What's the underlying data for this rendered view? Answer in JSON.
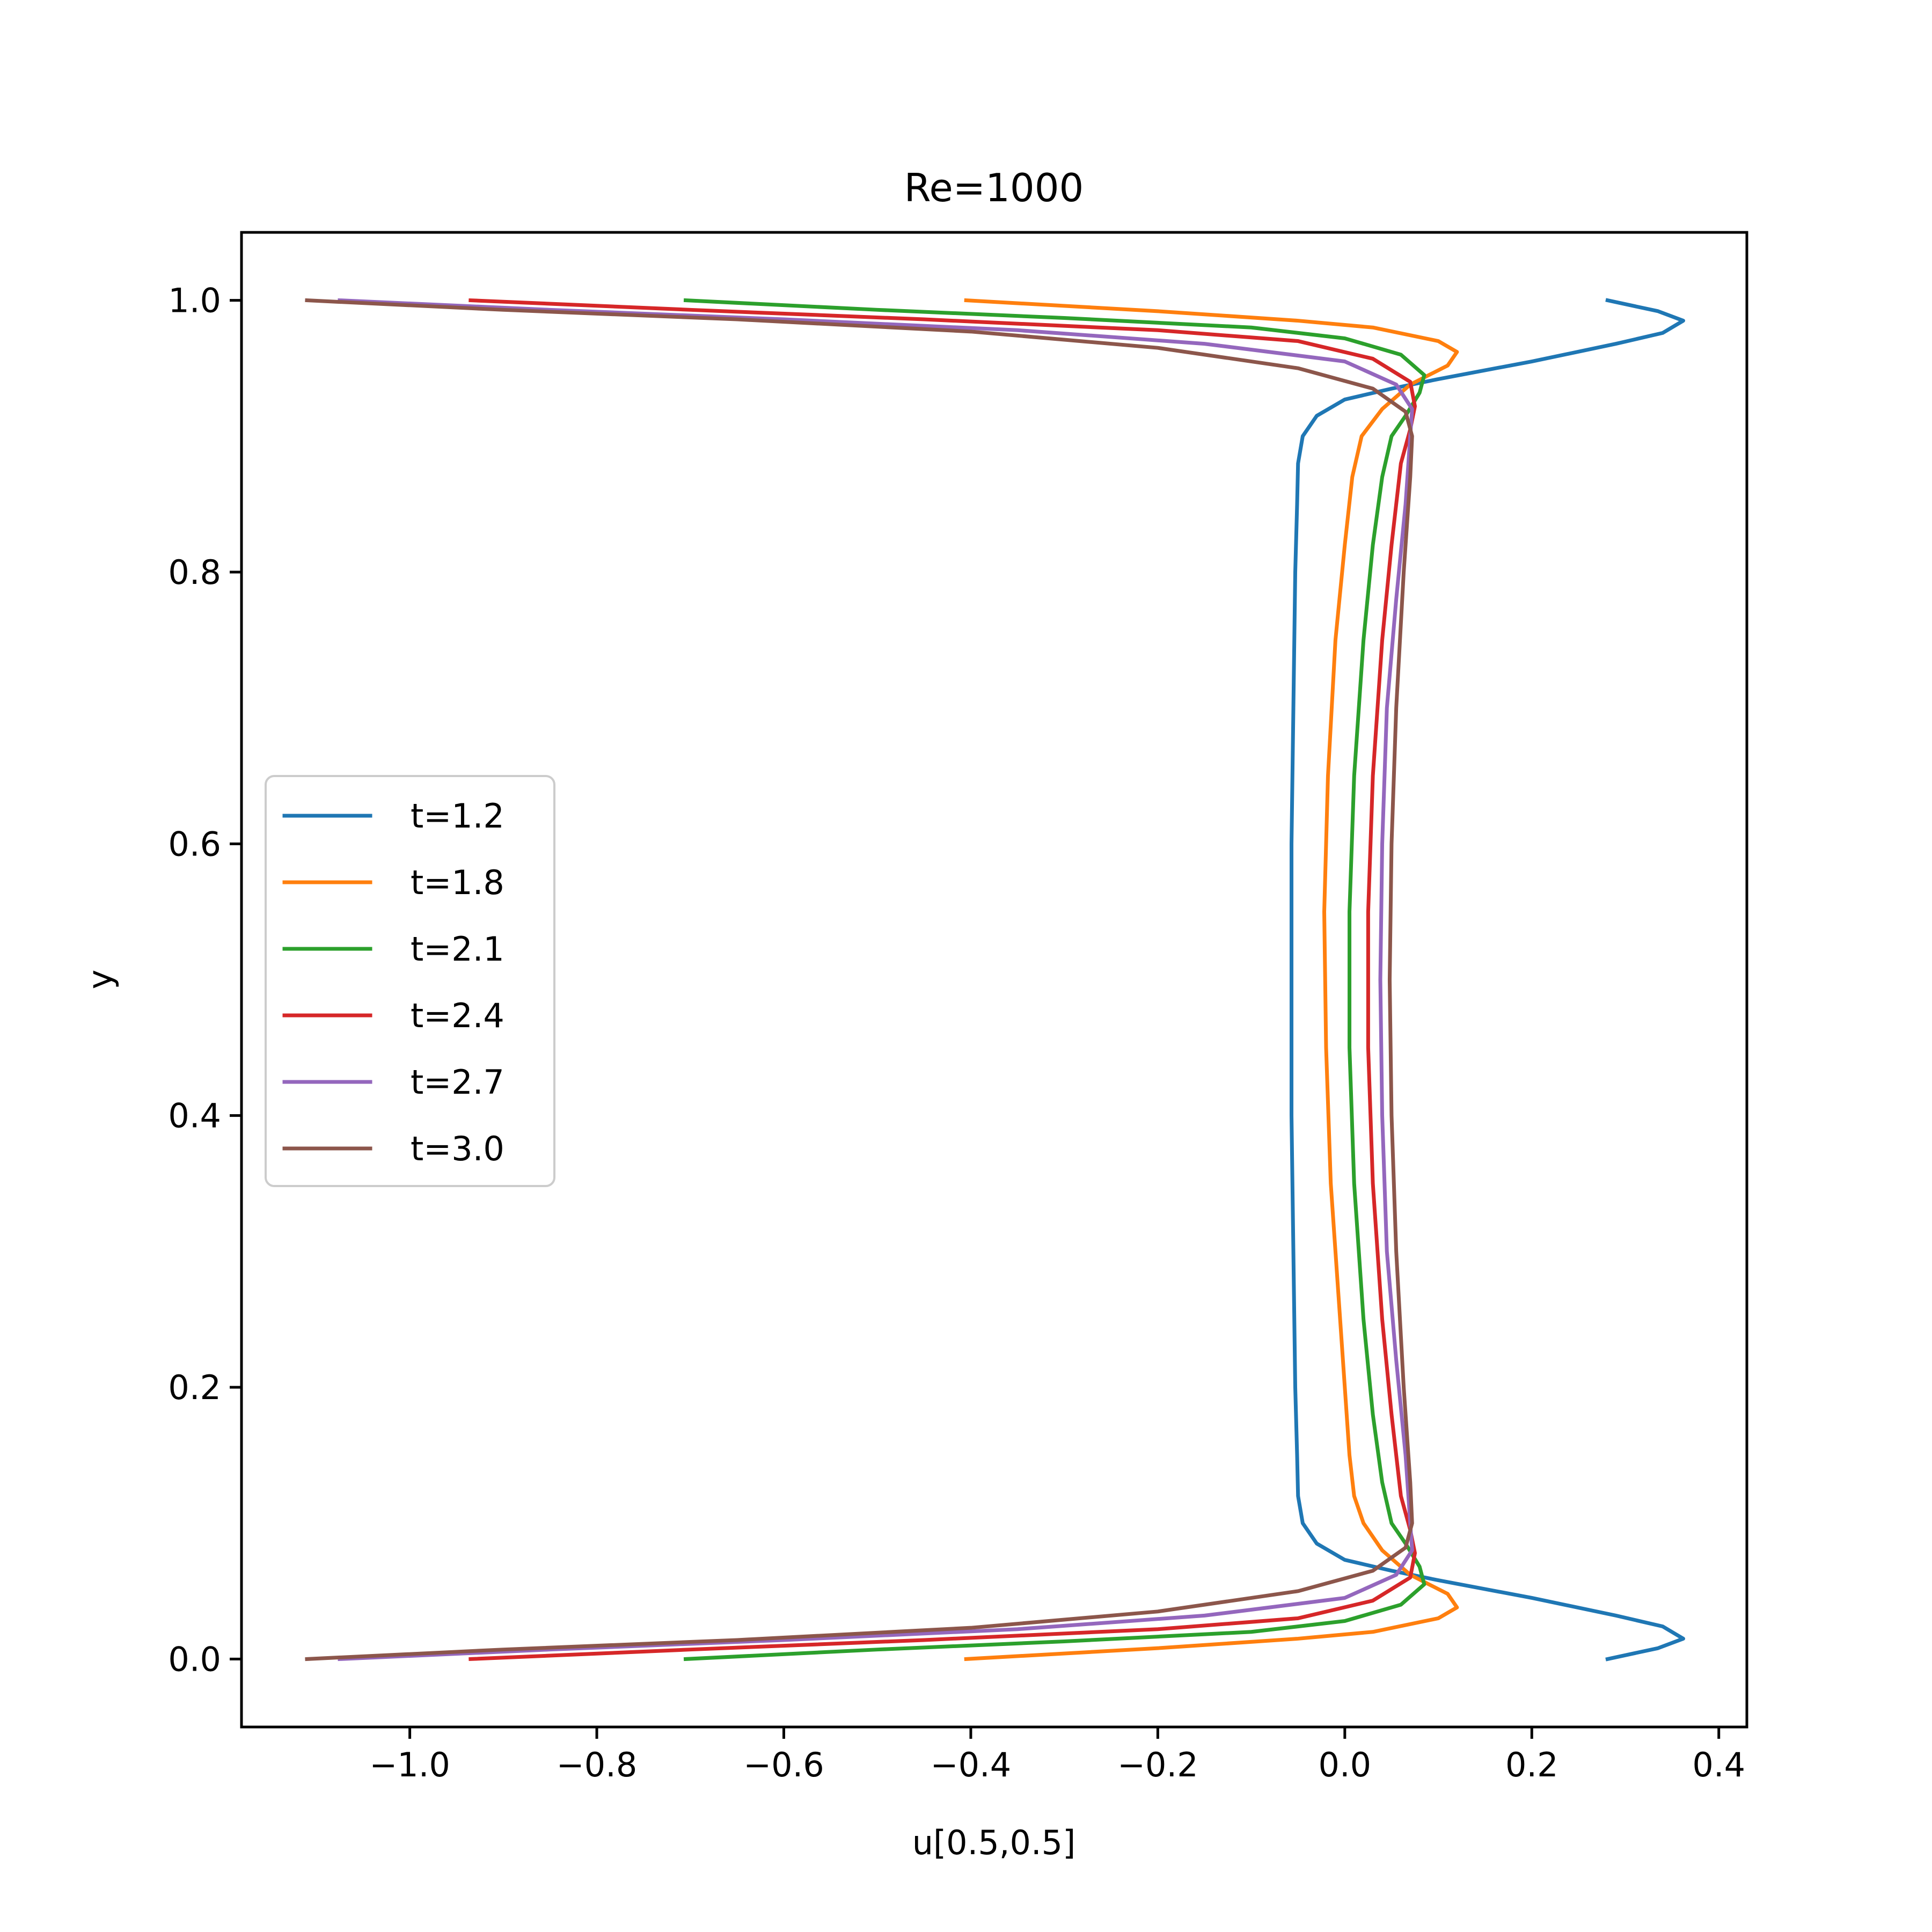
{
  "chart_data": {
    "type": "line",
    "title": "Re=1000",
    "xlabel": "u[0.5,0.5]",
    "ylabel": "y",
    "xlim": [
      -1.18,
      0.43
    ],
    "ylim": [
      -0.05,
      1.05
    ],
    "xticks": [
      -1.0,
      -0.8,
      -0.6,
      -0.4,
      -0.2,
      0.0,
      0.2,
      0.4
    ],
    "xtick_labels": [
      "−1.0",
      "−0.8",
      "−0.6",
      "−0.4",
      "−0.2",
      "0.0",
      "0.2",
      "0.4"
    ],
    "yticks": [
      0.0,
      0.2,
      0.4,
      0.6,
      0.8,
      1.0
    ],
    "ytick_labels": [
      "0.0",
      "0.2",
      "0.4",
      "0.6",
      "0.8",
      "1.0"
    ],
    "grid": false,
    "legend_position": "center-left",
    "series": [
      {
        "name": "t=1.2",
        "color": "#1f77b4",
        "points": [
          [
            0.281,
            0.0
          ],
          [
            0.335,
            0.008
          ],
          [
            0.362,
            0.015
          ],
          [
            0.34,
            0.024
          ],
          [
            0.29,
            0.032
          ],
          [
            0.2,
            0.045
          ],
          [
            0.1,
            0.058
          ],
          [
            0.05,
            0.065
          ],
          [
            0.0,
            0.073
          ],
          [
            -0.03,
            0.085
          ],
          [
            -0.045,
            0.1
          ],
          [
            -0.05,
            0.12
          ],
          [
            -0.051,
            0.15
          ],
          [
            -0.053,
            0.2
          ],
          [
            -0.055,
            0.3
          ],
          [
            -0.057,
            0.4
          ],
          [
            -0.057,
            0.5
          ],
          [
            -0.057,
            0.6
          ],
          [
            -0.055,
            0.7
          ],
          [
            -0.053,
            0.8
          ],
          [
            -0.051,
            0.85
          ],
          [
            -0.05,
            0.88
          ],
          [
            -0.045,
            0.9
          ],
          [
            -0.03,
            0.915
          ],
          [
            0.0,
            0.927
          ],
          [
            0.05,
            0.935
          ],
          [
            0.1,
            0.942
          ],
          [
            0.2,
            0.955
          ],
          [
            0.29,
            0.968
          ],
          [
            0.34,
            0.976
          ],
          [
            0.362,
            0.985
          ],
          [
            0.335,
            0.992
          ],
          [
            0.281,
            1.0
          ]
        ]
      },
      {
        "name": "t=1.8",
        "color": "#ff7f0e",
        "points": [
          [
            -0.405,
            0.0
          ],
          [
            -0.2,
            0.008
          ],
          [
            -0.05,
            0.015
          ],
          [
            0.03,
            0.02
          ],
          [
            0.1,
            0.03
          ],
          [
            0.12,
            0.038
          ],
          [
            0.11,
            0.048
          ],
          [
            0.07,
            0.062
          ],
          [
            0.04,
            0.08
          ],
          [
            0.02,
            0.1
          ],
          [
            0.01,
            0.12
          ],
          [
            0.005,
            0.15
          ],
          [
            -0.005,
            0.25
          ],
          [
            -0.015,
            0.35
          ],
          [
            -0.02,
            0.45
          ],
          [
            -0.022,
            0.55
          ],
          [
            -0.018,
            0.65
          ],
          [
            -0.01,
            0.75
          ],
          [
            0.0,
            0.82
          ],
          [
            0.008,
            0.87
          ],
          [
            0.018,
            0.9
          ],
          [
            0.04,
            0.92
          ],
          [
            0.07,
            0.938
          ],
          [
            0.11,
            0.952
          ],
          [
            0.12,
            0.962
          ],
          [
            0.1,
            0.97
          ],
          [
            0.03,
            0.98
          ],
          [
            -0.05,
            0.985
          ],
          [
            -0.2,
            0.992
          ],
          [
            -0.405,
            1.0
          ]
        ]
      },
      {
        "name": "t=2.1",
        "color": "#2ca02c",
        "points": [
          [
            -0.705,
            0.0
          ],
          [
            -0.5,
            0.007
          ],
          [
            -0.3,
            0.013
          ],
          [
            -0.1,
            0.02
          ],
          [
            0.0,
            0.028
          ],
          [
            0.06,
            0.04
          ],
          [
            0.085,
            0.055
          ],
          [
            0.08,
            0.068
          ],
          [
            0.065,
            0.085
          ],
          [
            0.05,
            0.1
          ],
          [
            0.04,
            0.13
          ],
          [
            0.03,
            0.18
          ],
          [
            0.02,
            0.25
          ],
          [
            0.01,
            0.35
          ],
          [
            0.005,
            0.45
          ],
          [
            0.005,
            0.55
          ],
          [
            0.01,
            0.65
          ],
          [
            0.02,
            0.75
          ],
          [
            0.03,
            0.82
          ],
          [
            0.04,
            0.87
          ],
          [
            0.05,
            0.9
          ],
          [
            0.065,
            0.915
          ],
          [
            0.08,
            0.932
          ],
          [
            0.085,
            0.945
          ],
          [
            0.06,
            0.96
          ],
          [
            0.0,
            0.972
          ],
          [
            -0.1,
            0.98
          ],
          [
            -0.3,
            0.987
          ],
          [
            -0.5,
            0.993
          ],
          [
            -0.705,
            1.0
          ]
        ]
      },
      {
        "name": "t=2.4",
        "color": "#d62728",
        "points": [
          [
            -0.935,
            0.0
          ],
          [
            -0.7,
            0.007
          ],
          [
            -0.45,
            0.014
          ],
          [
            -0.2,
            0.022
          ],
          [
            -0.05,
            0.03
          ],
          [
            0.03,
            0.043
          ],
          [
            0.07,
            0.06
          ],
          [
            0.075,
            0.078
          ],
          [
            0.07,
            0.095
          ],
          [
            0.06,
            0.12
          ],
          [
            0.05,
            0.18
          ],
          [
            0.04,
            0.25
          ],
          [
            0.03,
            0.35
          ],
          [
            0.025,
            0.45
          ],
          [
            0.025,
            0.55
          ],
          [
            0.03,
            0.65
          ],
          [
            0.04,
            0.75
          ],
          [
            0.05,
            0.82
          ],
          [
            0.06,
            0.88
          ],
          [
            0.07,
            0.905
          ],
          [
            0.075,
            0.922
          ],
          [
            0.07,
            0.94
          ],
          [
            0.03,
            0.957
          ],
          [
            -0.05,
            0.97
          ],
          [
            -0.2,
            0.978
          ],
          [
            -0.45,
            0.986
          ],
          [
            -0.7,
            0.993
          ],
          [
            -0.935,
            1.0
          ]
        ]
      },
      {
        "name": "t=2.7",
        "color": "#9467bd",
        "points": [
          [
            -1.075,
            0.0
          ],
          [
            -0.85,
            0.007
          ],
          [
            -0.6,
            0.014
          ],
          [
            -0.35,
            0.022
          ],
          [
            -0.15,
            0.032
          ],
          [
            0.0,
            0.045
          ],
          [
            0.055,
            0.062
          ],
          [
            0.072,
            0.08
          ],
          [
            0.07,
            0.1
          ],
          [
            0.065,
            0.15
          ],
          [
            0.055,
            0.22
          ],
          [
            0.045,
            0.3
          ],
          [
            0.04,
            0.4
          ],
          [
            0.038,
            0.5
          ],
          [
            0.04,
            0.6
          ],
          [
            0.045,
            0.7
          ],
          [
            0.055,
            0.78
          ],
          [
            0.065,
            0.85
          ],
          [
            0.07,
            0.9
          ],
          [
            0.072,
            0.92
          ],
          [
            0.055,
            0.938
          ],
          [
            0.0,
            0.955
          ],
          [
            -0.15,
            0.968
          ],
          [
            -0.35,
            0.978
          ],
          [
            -0.6,
            0.986
          ],
          [
            -0.85,
            0.993
          ],
          [
            -1.075,
            1.0
          ]
        ]
      },
      {
        "name": "t=3.0",
        "color": "#8c564b",
        "points": [
          [
            -1.11,
            0.0
          ],
          [
            -0.9,
            0.007
          ],
          [
            -0.65,
            0.014
          ],
          [
            -0.4,
            0.023
          ],
          [
            -0.2,
            0.035
          ],
          [
            -0.05,
            0.05
          ],
          [
            0.03,
            0.065
          ],
          [
            0.065,
            0.082
          ],
          [
            0.072,
            0.1
          ],
          [
            0.07,
            0.13
          ],
          [
            0.063,
            0.2
          ],
          [
            0.055,
            0.3
          ],
          [
            0.05,
            0.4
          ],
          [
            0.048,
            0.5
          ],
          [
            0.05,
            0.6
          ],
          [
            0.055,
            0.7
          ],
          [
            0.063,
            0.8
          ],
          [
            0.07,
            0.87
          ],
          [
            0.072,
            0.9
          ],
          [
            0.065,
            0.918
          ],
          [
            0.03,
            0.935
          ],
          [
            -0.05,
            0.95
          ],
          [
            -0.2,
            0.965
          ],
          [
            -0.4,
            0.977
          ],
          [
            -0.65,
            0.986
          ],
          [
            -0.9,
            0.993
          ],
          [
            -1.11,
            1.0
          ]
        ]
      }
    ]
  }
}
